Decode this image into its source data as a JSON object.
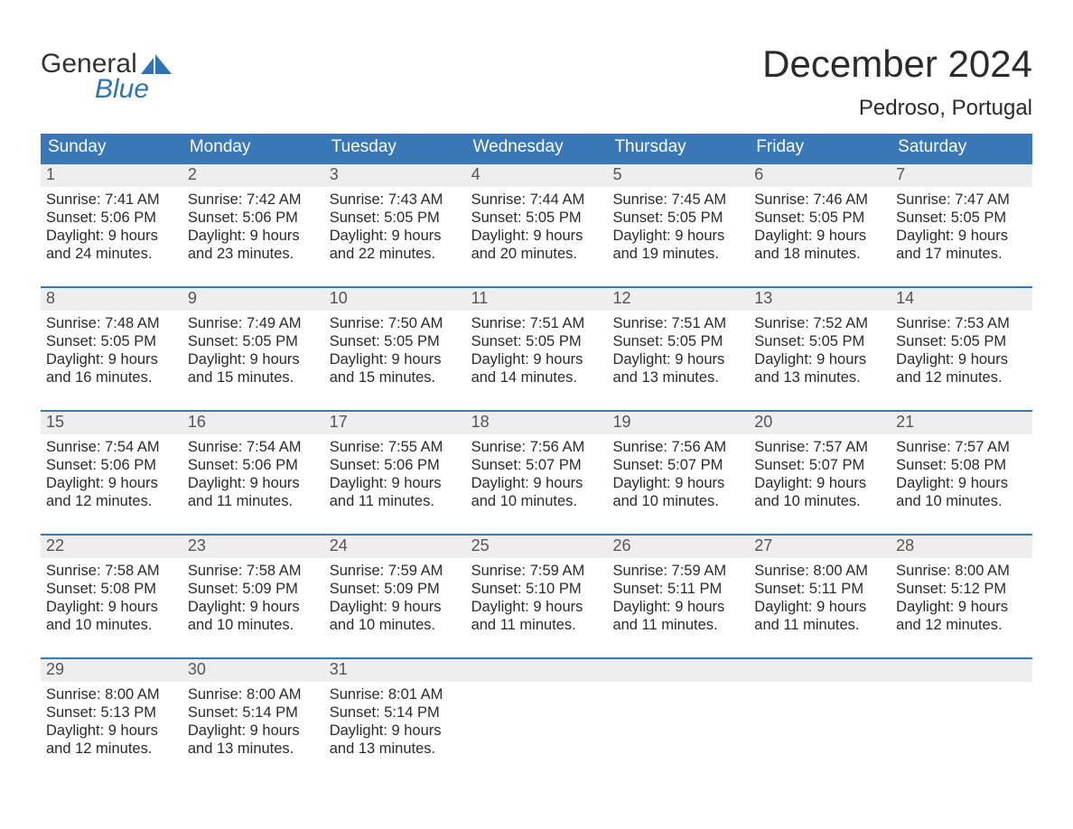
{
  "brand": {
    "word1": "General",
    "word2": "Blue",
    "text_color": "#333333",
    "accent_color": "#2d73b6"
  },
  "header": {
    "month_title": "December 2024",
    "location": "Pedroso, Portugal"
  },
  "colors": {
    "header_bg": "#3a77b7",
    "header_text": "#ffffff",
    "week_border": "#3a77b7",
    "daynum_bg": "#eeeeee",
    "daynum_text": "#555555",
    "body_text": "#2b2b2b",
    "page_bg": "#ffffff"
  },
  "day_headers": [
    "Sunday",
    "Monday",
    "Tuesday",
    "Wednesday",
    "Thursday",
    "Friday",
    "Saturday"
  ],
  "weeks": [
    [
      {
        "n": "1",
        "sr": "Sunrise: 7:41 AM",
        "ss": "Sunset: 5:06 PM",
        "d1": "Daylight: 9 hours",
        "d2": "and 24 minutes."
      },
      {
        "n": "2",
        "sr": "Sunrise: 7:42 AM",
        "ss": "Sunset: 5:06 PM",
        "d1": "Daylight: 9 hours",
        "d2": "and 23 minutes."
      },
      {
        "n": "3",
        "sr": "Sunrise: 7:43 AM",
        "ss": "Sunset: 5:05 PM",
        "d1": "Daylight: 9 hours",
        "d2": "and 22 minutes."
      },
      {
        "n": "4",
        "sr": "Sunrise: 7:44 AM",
        "ss": "Sunset: 5:05 PM",
        "d1": "Daylight: 9 hours",
        "d2": "and 20 minutes."
      },
      {
        "n": "5",
        "sr": "Sunrise: 7:45 AM",
        "ss": "Sunset: 5:05 PM",
        "d1": "Daylight: 9 hours",
        "d2": "and 19 minutes."
      },
      {
        "n": "6",
        "sr": "Sunrise: 7:46 AM",
        "ss": "Sunset: 5:05 PM",
        "d1": "Daylight: 9 hours",
        "d2": "and 18 minutes."
      },
      {
        "n": "7",
        "sr": "Sunrise: 7:47 AM",
        "ss": "Sunset: 5:05 PM",
        "d1": "Daylight: 9 hours",
        "d2": "and 17 minutes."
      }
    ],
    [
      {
        "n": "8",
        "sr": "Sunrise: 7:48 AM",
        "ss": "Sunset: 5:05 PM",
        "d1": "Daylight: 9 hours",
        "d2": "and 16 minutes."
      },
      {
        "n": "9",
        "sr": "Sunrise: 7:49 AM",
        "ss": "Sunset: 5:05 PM",
        "d1": "Daylight: 9 hours",
        "d2": "and 15 minutes."
      },
      {
        "n": "10",
        "sr": "Sunrise: 7:50 AM",
        "ss": "Sunset: 5:05 PM",
        "d1": "Daylight: 9 hours",
        "d2": "and 15 minutes."
      },
      {
        "n": "11",
        "sr": "Sunrise: 7:51 AM",
        "ss": "Sunset: 5:05 PM",
        "d1": "Daylight: 9 hours",
        "d2": "and 14 minutes."
      },
      {
        "n": "12",
        "sr": "Sunrise: 7:51 AM",
        "ss": "Sunset: 5:05 PM",
        "d1": "Daylight: 9 hours",
        "d2": "and 13 minutes."
      },
      {
        "n": "13",
        "sr": "Sunrise: 7:52 AM",
        "ss": "Sunset: 5:05 PM",
        "d1": "Daylight: 9 hours",
        "d2": "and 13 minutes."
      },
      {
        "n": "14",
        "sr": "Sunrise: 7:53 AM",
        "ss": "Sunset: 5:05 PM",
        "d1": "Daylight: 9 hours",
        "d2": "and 12 minutes."
      }
    ],
    [
      {
        "n": "15",
        "sr": "Sunrise: 7:54 AM",
        "ss": "Sunset: 5:06 PM",
        "d1": "Daylight: 9 hours",
        "d2": "and 12 minutes."
      },
      {
        "n": "16",
        "sr": "Sunrise: 7:54 AM",
        "ss": "Sunset: 5:06 PM",
        "d1": "Daylight: 9 hours",
        "d2": "and 11 minutes."
      },
      {
        "n": "17",
        "sr": "Sunrise: 7:55 AM",
        "ss": "Sunset: 5:06 PM",
        "d1": "Daylight: 9 hours",
        "d2": "and 11 minutes."
      },
      {
        "n": "18",
        "sr": "Sunrise: 7:56 AM",
        "ss": "Sunset: 5:07 PM",
        "d1": "Daylight: 9 hours",
        "d2": "and 10 minutes."
      },
      {
        "n": "19",
        "sr": "Sunrise: 7:56 AM",
        "ss": "Sunset: 5:07 PM",
        "d1": "Daylight: 9 hours",
        "d2": "and 10 minutes."
      },
      {
        "n": "20",
        "sr": "Sunrise: 7:57 AM",
        "ss": "Sunset: 5:07 PM",
        "d1": "Daylight: 9 hours",
        "d2": "and 10 minutes."
      },
      {
        "n": "21",
        "sr": "Sunrise: 7:57 AM",
        "ss": "Sunset: 5:08 PM",
        "d1": "Daylight: 9 hours",
        "d2": "and 10 minutes."
      }
    ],
    [
      {
        "n": "22",
        "sr": "Sunrise: 7:58 AM",
        "ss": "Sunset: 5:08 PM",
        "d1": "Daylight: 9 hours",
        "d2": "and 10 minutes."
      },
      {
        "n": "23",
        "sr": "Sunrise: 7:58 AM",
        "ss": "Sunset: 5:09 PM",
        "d1": "Daylight: 9 hours",
        "d2": "and 10 minutes."
      },
      {
        "n": "24",
        "sr": "Sunrise: 7:59 AM",
        "ss": "Sunset: 5:09 PM",
        "d1": "Daylight: 9 hours",
        "d2": "and 10 minutes."
      },
      {
        "n": "25",
        "sr": "Sunrise: 7:59 AM",
        "ss": "Sunset: 5:10 PM",
        "d1": "Daylight: 9 hours",
        "d2": "and 11 minutes."
      },
      {
        "n": "26",
        "sr": "Sunrise: 7:59 AM",
        "ss": "Sunset: 5:11 PM",
        "d1": "Daylight: 9 hours",
        "d2": "and 11 minutes."
      },
      {
        "n": "27",
        "sr": "Sunrise: 8:00 AM",
        "ss": "Sunset: 5:11 PM",
        "d1": "Daylight: 9 hours",
        "d2": "and 11 minutes."
      },
      {
        "n": "28",
        "sr": "Sunrise: 8:00 AM",
        "ss": "Sunset: 5:12 PM",
        "d1": "Daylight: 9 hours",
        "d2": "and 12 minutes."
      }
    ],
    [
      {
        "n": "29",
        "sr": "Sunrise: 8:00 AM",
        "ss": "Sunset: 5:13 PM",
        "d1": "Daylight: 9 hours",
        "d2": "and 12 minutes."
      },
      {
        "n": "30",
        "sr": "Sunrise: 8:00 AM",
        "ss": "Sunset: 5:14 PM",
        "d1": "Daylight: 9 hours",
        "d2": "and 13 minutes."
      },
      {
        "n": "31",
        "sr": "Sunrise: 8:01 AM",
        "ss": "Sunset: 5:14 PM",
        "d1": "Daylight: 9 hours",
        "d2": "and 13 minutes."
      },
      {
        "empty": true
      },
      {
        "empty": true
      },
      {
        "empty": true
      },
      {
        "empty": true
      }
    ]
  ]
}
